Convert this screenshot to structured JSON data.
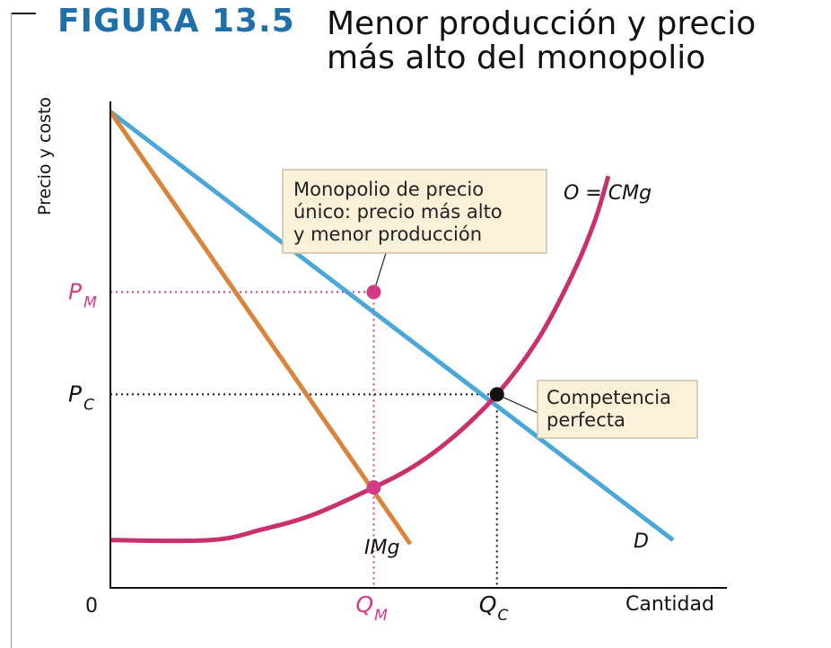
{
  "figure": {
    "number": "FIGURA 13.5",
    "title_line1": "Menor producción y precio",
    "title_line2": "más alto del monopolio"
  },
  "chart_data": {
    "type": "line",
    "title": "Menor producción y precio más alto del monopolio",
    "xlabel": "Cantidad",
    "ylabel": "Precio y costo",
    "origin_label": "0",
    "grid": false,
    "xlim": [
      0,
      100
    ],
    "ylim": [
      0,
      100
    ],
    "series": [
      {
        "name": "D",
        "color": "#4aa8d8",
        "points": [
          [
            0,
            97.7
          ],
          [
            100,
            9.8
          ]
        ]
      },
      {
        "name": "IMg",
        "color": "#d9843a",
        "points": [
          [
            0,
            97.7
          ],
          [
            53.3,
            9.0
          ]
        ]
      },
      {
        "name": "O = CMg",
        "color": "#c8306e",
        "points": [
          [
            0,
            9.8
          ],
          [
            17.8,
            9.8
          ],
          [
            27,
            12
          ],
          [
            36,
            15
          ],
          [
            46.8,
            20.6
          ],
          [
            54,
            25
          ],
          [
            61,
            31
          ],
          [
            68.7,
            39.7
          ],
          [
            76,
            51
          ],
          [
            82,
            64
          ],
          [
            86,
            75
          ],
          [
            88.5,
            84.5
          ]
        ]
      }
    ],
    "points": [
      {
        "label": "monopolio-precio",
        "x": 46.8,
        "y": 60.7,
        "color": "#d63a86"
      },
      {
        "label": "monopolio-costo",
        "x": 46.8,
        "y": 20.6,
        "color": "#d63a86"
      },
      {
        "label": "competencia",
        "x": 68.7,
        "y": 39.7,
        "color": "#111111"
      }
    ],
    "y_ticks": [
      {
        "main": "P",
        "sub": "M",
        "value": 60.7,
        "color": "#d63a86"
      },
      {
        "main": "P",
        "sub": "C",
        "value": 39.7,
        "color": "#111111"
      }
    ],
    "x_ticks": [
      {
        "main": "Q",
        "sub": "M",
        "value": 46.8,
        "color": "#d63a86"
      },
      {
        "main": "Q",
        "sub": "C",
        "value": 68.7,
        "color": "#111111"
      }
    ],
    "annotations": [
      {
        "id": "monopolio",
        "lines": [
          "Monopolio de precio",
          "único: precio más alto",
          "y menor producción"
        ],
        "points_to": "monopolio-precio"
      },
      {
        "id": "competencia",
        "lines": [
          "Competencia",
          "perfecta"
        ],
        "points_to": "competencia"
      }
    ]
  }
}
